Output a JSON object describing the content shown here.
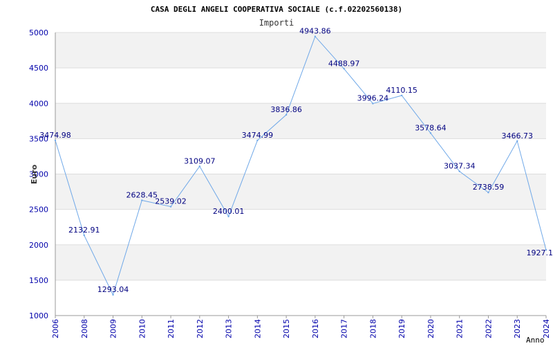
{
  "chart_data": {
    "type": "line",
    "title": "CASA DEGLI ANGELI COOPERATIVA SOCIALE (c.f.02202560138)",
    "subtitle": "Importi",
    "xlabel": "Anno",
    "ylabel": "Euro",
    "ylim": [
      1000,
      5000
    ],
    "yticks": [
      1000,
      1500,
      2000,
      2500,
      3000,
      3500,
      4000,
      4500,
      5000
    ],
    "grid": true,
    "categories": [
      "2006",
      "2008",
      "2009",
      "2010",
      "2011",
      "2012",
      "2013",
      "2014",
      "2015",
      "2016",
      "2017",
      "2018",
      "2019",
      "2020",
      "2021",
      "2022",
      "2023",
      "2024"
    ],
    "series": [
      {
        "values": [
          3474.98,
          2132.91,
          1293.04,
          2628.45,
          2539.02,
          3109.07,
          2400.01,
          3474.99,
          3836.86,
          4943.86,
          4488.97,
          3996.24,
          4110.15,
          3578.64,
          3037.34,
          2738.59,
          3466.73,
          1927.1
        ],
        "labels": [
          "3474.98",
          "2132.91",
          "1293.04",
          "2628.45",
          "2539.02",
          "3109.07",
          "2400.01",
          "3474.99",
          "3836.86",
          "4943.86",
          "4488.97",
          "3996.24",
          "4110.15",
          "3578.64",
          "3037.34",
          "2738.59",
          "3466.73",
          "1927.1"
        ]
      }
    ],
    "colors": {
      "line": "#6fa8e8",
      "band": "#f2f2f2",
      "gridline": "#dddddd",
      "axis": "#999999",
      "tick_text": "#0000aa",
      "data_label": "#000080"
    }
  }
}
